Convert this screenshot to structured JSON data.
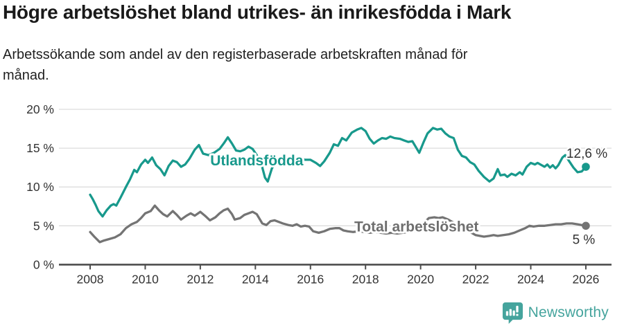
{
  "header": {
    "title": "Högre arbetslöshet bland utrikes- än inrikesfödda i Mark",
    "subtitle": "Arbetssökande som andel av den registerbaserade arbetskraften månad för månad."
  },
  "chart_data": {
    "type": "line",
    "title": "Högre arbetslöshet bland utrikes- än inrikesfödda i Mark",
    "xlabel": "",
    "ylabel": "%",
    "grid": true,
    "x_axis": {
      "ticks": [
        2008,
        2010,
        2012,
        2014,
        2016,
        2018,
        2020,
        2022,
        2024,
        2026
      ],
      "range": [
        2006.85,
        2026.95
      ]
    },
    "y_axis": {
      "tick_values": [
        0,
        5,
        10,
        15,
        20
      ],
      "tick_labels": [
        "0 %",
        "5 %",
        "10 %",
        "15 %",
        "20 %"
      ],
      "range": [
        0,
        21.6
      ],
      "unit": "%"
    },
    "series": [
      {
        "id": "total",
        "name": "Total arbetslöshet",
        "color": "#747474",
        "label_color": "#6e6e6e",
        "label_pos": {
          "x": 2019.85,
          "y": 4.9
        },
        "end_annotation": "5 %",
        "points": [
          [
            2008.0,
            4.2
          ],
          [
            2008.15,
            3.6
          ],
          [
            2008.35,
            2.9
          ],
          [
            2008.5,
            3.1
          ],
          [
            2008.7,
            3.3
          ],
          [
            2008.9,
            3.5
          ],
          [
            2009.1,
            3.9
          ],
          [
            2009.3,
            4.7
          ],
          [
            2009.5,
            5.2
          ],
          [
            2009.7,
            5.5
          ],
          [
            2009.85,
            6.0
          ],
          [
            2010.0,
            6.6
          ],
          [
            2010.2,
            6.9
          ],
          [
            2010.35,
            7.6
          ],
          [
            2010.5,
            7.0
          ],
          [
            2010.65,
            6.5
          ],
          [
            2010.8,
            6.2
          ],
          [
            2011.0,
            6.9
          ],
          [
            2011.15,
            6.4
          ],
          [
            2011.3,
            5.8
          ],
          [
            2011.5,
            6.3
          ],
          [
            2011.65,
            6.6
          ],
          [
            2011.8,
            6.3
          ],
          [
            2012.0,
            6.8
          ],
          [
            2012.2,
            6.2
          ],
          [
            2012.35,
            5.7
          ],
          [
            2012.55,
            6.1
          ],
          [
            2012.7,
            6.6
          ],
          [
            2012.85,
            7.0
          ],
          [
            2013.0,
            7.2
          ],
          [
            2013.15,
            6.5
          ],
          [
            2013.25,
            5.8
          ],
          [
            2013.45,
            6.0
          ],
          [
            2013.6,
            6.4
          ],
          [
            2013.75,
            6.6
          ],
          [
            2013.9,
            6.8
          ],
          [
            2014.05,
            6.5
          ],
          [
            2014.25,
            5.3
          ],
          [
            2014.4,
            5.1
          ],
          [
            2014.55,
            5.6
          ],
          [
            2014.7,
            5.7
          ],
          [
            2014.85,
            5.5
          ],
          [
            2015.0,
            5.3
          ],
          [
            2015.2,
            5.1
          ],
          [
            2015.35,
            5.0
          ],
          [
            2015.5,
            5.2
          ],
          [
            2015.65,
            4.9
          ],
          [
            2015.8,
            5.0
          ],
          [
            2015.95,
            4.9
          ],
          [
            2016.1,
            4.3
          ],
          [
            2016.3,
            4.1
          ],
          [
            2016.5,
            4.3
          ],
          [
            2016.7,
            4.6
          ],
          [
            2016.9,
            4.7
          ],
          [
            2017.05,
            4.7
          ],
          [
            2017.2,
            4.4
          ],
          [
            2017.35,
            4.3
          ],
          [
            2017.55,
            4.2
          ],
          [
            2017.75,
            4.3
          ],
          [
            2017.95,
            4.2
          ],
          [
            2018.15,
            4.1
          ],
          [
            2018.35,
            4.2
          ],
          [
            2018.55,
            4.1
          ],
          [
            2018.75,
            4.0
          ],
          [
            2018.95,
            4.1
          ],
          [
            2019.15,
            4.0
          ],
          [
            2019.35,
            4.1
          ],
          [
            2019.55,
            4.2
          ],
          [
            2019.75,
            4.3
          ],
          [
            2019.95,
            4.6
          ],
          [
            2020.1,
            5.3
          ],
          [
            2020.3,
            6.0
          ],
          [
            2020.5,
            6.1
          ],
          [
            2020.65,
            6.0
          ],
          [
            2020.8,
            6.1
          ],
          [
            2021.0,
            5.8
          ],
          [
            2021.2,
            5.4
          ],
          [
            2021.4,
            5.0
          ],
          [
            2021.6,
            4.6
          ],
          [
            2021.8,
            4.2
          ],
          [
            2022.0,
            3.8
          ],
          [
            2022.15,
            3.7
          ],
          [
            2022.3,
            3.6
          ],
          [
            2022.5,
            3.7
          ],
          [
            2022.65,
            3.8
          ],
          [
            2022.8,
            3.7
          ],
          [
            2023.0,
            3.8
          ],
          [
            2023.2,
            3.9
          ],
          [
            2023.4,
            4.1
          ],
          [
            2023.6,
            4.4
          ],
          [
            2023.8,
            4.7
          ],
          [
            2023.95,
            5.0
          ],
          [
            2024.1,
            4.9
          ],
          [
            2024.3,
            5.0
          ],
          [
            2024.5,
            5.0
          ],
          [
            2024.7,
            5.1
          ],
          [
            2024.9,
            5.2
          ],
          [
            2025.1,
            5.2
          ],
          [
            2025.3,
            5.3
          ],
          [
            2025.5,
            5.3
          ],
          [
            2025.7,
            5.2
          ],
          [
            2025.85,
            5.1
          ],
          [
            2026.0,
            5.0
          ]
        ]
      },
      {
        "id": "utlandsfodda",
        "name": "Utlandsfödda",
        "color": "#18998c",
        "label_color": "#18998c",
        "label_pos": {
          "x": 2014.05,
          "y": 13.4
        },
        "end_annotation": "12,6 %",
        "points": [
          [
            2008.0,
            9.0
          ],
          [
            2008.1,
            8.4
          ],
          [
            2008.2,
            7.7
          ],
          [
            2008.3,
            6.9
          ],
          [
            2008.45,
            6.2
          ],
          [
            2008.6,
            7.0
          ],
          [
            2008.75,
            7.6
          ],
          [
            2008.85,
            7.8
          ],
          [
            2008.95,
            7.6
          ],
          [
            2009.1,
            8.6
          ],
          [
            2009.3,
            10.0
          ],
          [
            2009.45,
            11.0
          ],
          [
            2009.6,
            12.2
          ],
          [
            2009.7,
            11.9
          ],
          [
            2009.85,
            12.9
          ],
          [
            2010.0,
            13.5
          ],
          [
            2010.1,
            13.1
          ],
          [
            2010.25,
            13.8
          ],
          [
            2010.4,
            12.8
          ],
          [
            2010.55,
            12.3
          ],
          [
            2010.7,
            11.5
          ],
          [
            2010.85,
            12.7
          ],
          [
            2011.0,
            13.4
          ],
          [
            2011.15,
            13.2
          ],
          [
            2011.3,
            12.6
          ],
          [
            2011.45,
            12.9
          ],
          [
            2011.6,
            13.6
          ],
          [
            2011.8,
            14.8
          ],
          [
            2011.95,
            15.4
          ],
          [
            2012.1,
            14.3
          ],
          [
            2012.3,
            14.1
          ],
          [
            2012.5,
            14.4
          ],
          [
            2012.7,
            14.9
          ],
          [
            2012.85,
            15.6
          ],
          [
            2013.0,
            16.4
          ],
          [
            2013.15,
            15.6
          ],
          [
            2013.3,
            14.7
          ],
          [
            2013.45,
            14.6
          ],
          [
            2013.6,
            14.8
          ],
          [
            2013.75,
            15.2
          ],
          [
            2013.9,
            14.9
          ],
          [
            2014.05,
            14.1
          ],
          [
            2014.2,
            13.2
          ],
          [
            2014.35,
            11.2
          ],
          [
            2014.45,
            10.7
          ],
          [
            2014.6,
            12.4
          ],
          [
            2014.75,
            13.3
          ],
          [
            2014.9,
            13.5
          ],
          [
            2015.05,
            13.3
          ],
          [
            2015.2,
            13.7
          ],
          [
            2015.35,
            13.4
          ],
          [
            2015.5,
            13.6
          ],
          [
            2015.65,
            13.7
          ],
          [
            2015.8,
            13.5
          ],
          [
            2016.0,
            13.5
          ],
          [
            2016.2,
            13.1
          ],
          [
            2016.35,
            12.7
          ],
          [
            2016.5,
            13.3
          ],
          [
            2016.7,
            14.4
          ],
          [
            2016.85,
            15.5
          ],
          [
            2017.0,
            15.3
          ],
          [
            2017.15,
            16.3
          ],
          [
            2017.3,
            16.0
          ],
          [
            2017.5,
            17.0
          ],
          [
            2017.7,
            17.4
          ],
          [
            2017.85,
            17.6
          ],
          [
            2018.0,
            17.2
          ],
          [
            2018.15,
            16.2
          ],
          [
            2018.3,
            15.6
          ],
          [
            2018.45,
            16.0
          ],
          [
            2018.6,
            16.3
          ],
          [
            2018.75,
            16.2
          ],
          [
            2018.9,
            16.5
          ],
          [
            2019.05,
            16.3
          ],
          [
            2019.25,
            16.2
          ],
          [
            2019.4,
            16.0
          ],
          [
            2019.55,
            15.8
          ],
          [
            2019.7,
            15.9
          ],
          [
            2019.8,
            15.3
          ],
          [
            2019.95,
            14.4
          ],
          [
            2020.1,
            15.7
          ],
          [
            2020.25,
            16.9
          ],
          [
            2020.45,
            17.6
          ],
          [
            2020.6,
            17.4
          ],
          [
            2020.75,
            17.5
          ],
          [
            2020.9,
            16.9
          ],
          [
            2021.05,
            16.5
          ],
          [
            2021.2,
            16.3
          ],
          [
            2021.35,
            14.8
          ],
          [
            2021.5,
            14.0
          ],
          [
            2021.65,
            13.8
          ],
          [
            2021.8,
            13.2
          ],
          [
            2021.95,
            12.9
          ],
          [
            2022.1,
            12.1
          ],
          [
            2022.3,
            11.3
          ],
          [
            2022.5,
            10.7
          ],
          [
            2022.65,
            11.1
          ],
          [
            2022.8,
            12.3
          ],
          [
            2022.9,
            11.5
          ],
          [
            2023.05,
            11.6
          ],
          [
            2023.15,
            11.3
          ],
          [
            2023.3,
            11.7
          ],
          [
            2023.45,
            11.5
          ],
          [
            2023.6,
            11.9
          ],
          [
            2023.7,
            11.6
          ],
          [
            2023.85,
            12.6
          ],
          [
            2024.0,
            13.1
          ],
          [
            2024.15,
            12.9
          ],
          [
            2024.25,
            13.1
          ],
          [
            2024.4,
            12.8
          ],
          [
            2024.5,
            12.6
          ],
          [
            2024.6,
            12.9
          ],
          [
            2024.7,
            12.5
          ],
          [
            2024.8,
            12.8
          ],
          [
            2024.9,
            12.4
          ],
          [
            2025.0,
            12.8
          ],
          [
            2025.15,
            13.8
          ],
          [
            2025.25,
            14.1
          ],
          [
            2025.4,
            13.3
          ],
          [
            2025.55,
            12.5
          ],
          [
            2025.7,
            11.9
          ],
          [
            2025.85,
            12.0
          ],
          [
            2026.0,
            12.6
          ]
        ]
      }
    ],
    "colors": {
      "accent_teal": "#18998c",
      "line_gray": "#747474",
      "grid": "#dcdcdc",
      "axis": "#4d4d4d",
      "text": "#333333"
    }
  },
  "logo": {
    "text": "Newsworthy",
    "color": "#45a49d"
  }
}
